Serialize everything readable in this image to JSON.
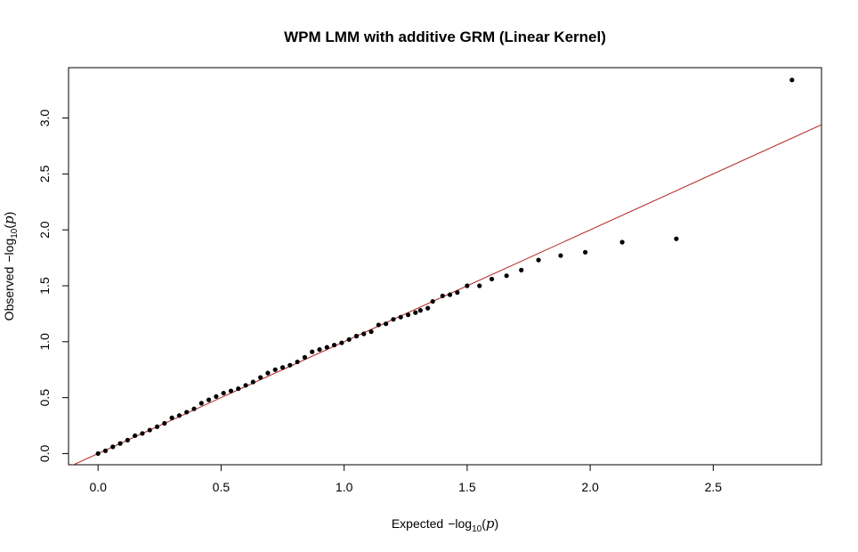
{
  "chart_data": {
    "type": "scatter",
    "title": "WPM LMM with additive GRM (Linear Kernel)",
    "xlabel": {
      "prefix": "Expected",
      "minus_log": "−log",
      "sub": "10",
      "arg_open": "(",
      "arg": "p",
      "arg_close": ")"
    },
    "ylabel": {
      "prefix": "Observed",
      "minus_log": "−log",
      "sub": "10",
      "arg_open": "(",
      "arg": "p",
      "arg_close": ")"
    },
    "xlim": [
      -0.12,
      2.94
    ],
    "ylim": [
      -0.1,
      3.45
    ],
    "xticks": [
      0.0,
      0.5,
      1.0,
      1.5,
      2.0,
      2.5
    ],
    "xtick_labels": [
      "0.0",
      "0.5",
      "1.0",
      "1.5",
      "2.0",
      "2.5"
    ],
    "yticks": [
      0.0,
      0.5,
      1.0,
      1.5,
      2.0,
      2.5,
      3.0
    ],
    "ytick_labels": [
      "0.0",
      "0.5",
      "1.0",
      "1.5",
      "2.0",
      "2.5",
      "3.0"
    ],
    "reference_line": {
      "slope": 1,
      "intercept": 0,
      "color": "#b22222"
    },
    "point_color": "#000000",
    "points": {
      "x": [
        0.0,
        0.03,
        0.06,
        0.09,
        0.12,
        0.15,
        0.18,
        0.21,
        0.24,
        0.27,
        0.3,
        0.33,
        0.36,
        0.39,
        0.42,
        0.45,
        0.48,
        0.51,
        0.54,
        0.57,
        0.6,
        0.63,
        0.66,
        0.69,
        0.72,
        0.75,
        0.78,
        0.81,
        0.84,
        0.87,
        0.9,
        0.93,
        0.96,
        0.99,
        1.02,
        1.05,
        1.08,
        1.11,
        1.14,
        1.17,
        1.2,
        1.23,
        1.26,
        1.29,
        1.31,
        1.34,
        1.36,
        1.4,
        1.43,
        1.46,
        1.5,
        1.55,
        1.6,
        1.66,
        1.72,
        1.79,
        1.88,
        1.98,
        2.13,
        2.35,
        2.82
      ],
      "y": [
        0.0,
        0.025,
        0.06,
        0.09,
        0.12,
        0.16,
        0.18,
        0.21,
        0.24,
        0.27,
        0.32,
        0.34,
        0.37,
        0.4,
        0.45,
        0.48,
        0.51,
        0.54,
        0.56,
        0.58,
        0.61,
        0.64,
        0.68,
        0.72,
        0.75,
        0.77,
        0.79,
        0.82,
        0.86,
        0.91,
        0.93,
        0.95,
        0.97,
        0.99,
        1.02,
        1.05,
        1.07,
        1.09,
        1.15,
        1.16,
        1.2,
        1.22,
        1.24,
        1.26,
        1.28,
        1.3,
        1.36,
        1.41,
        1.42,
        1.44,
        1.5,
        1.5,
        1.56,
        1.59,
        1.64,
        1.73,
        1.77,
        1.8,
        1.89,
        1.92,
        3.34
      ]
    }
  }
}
